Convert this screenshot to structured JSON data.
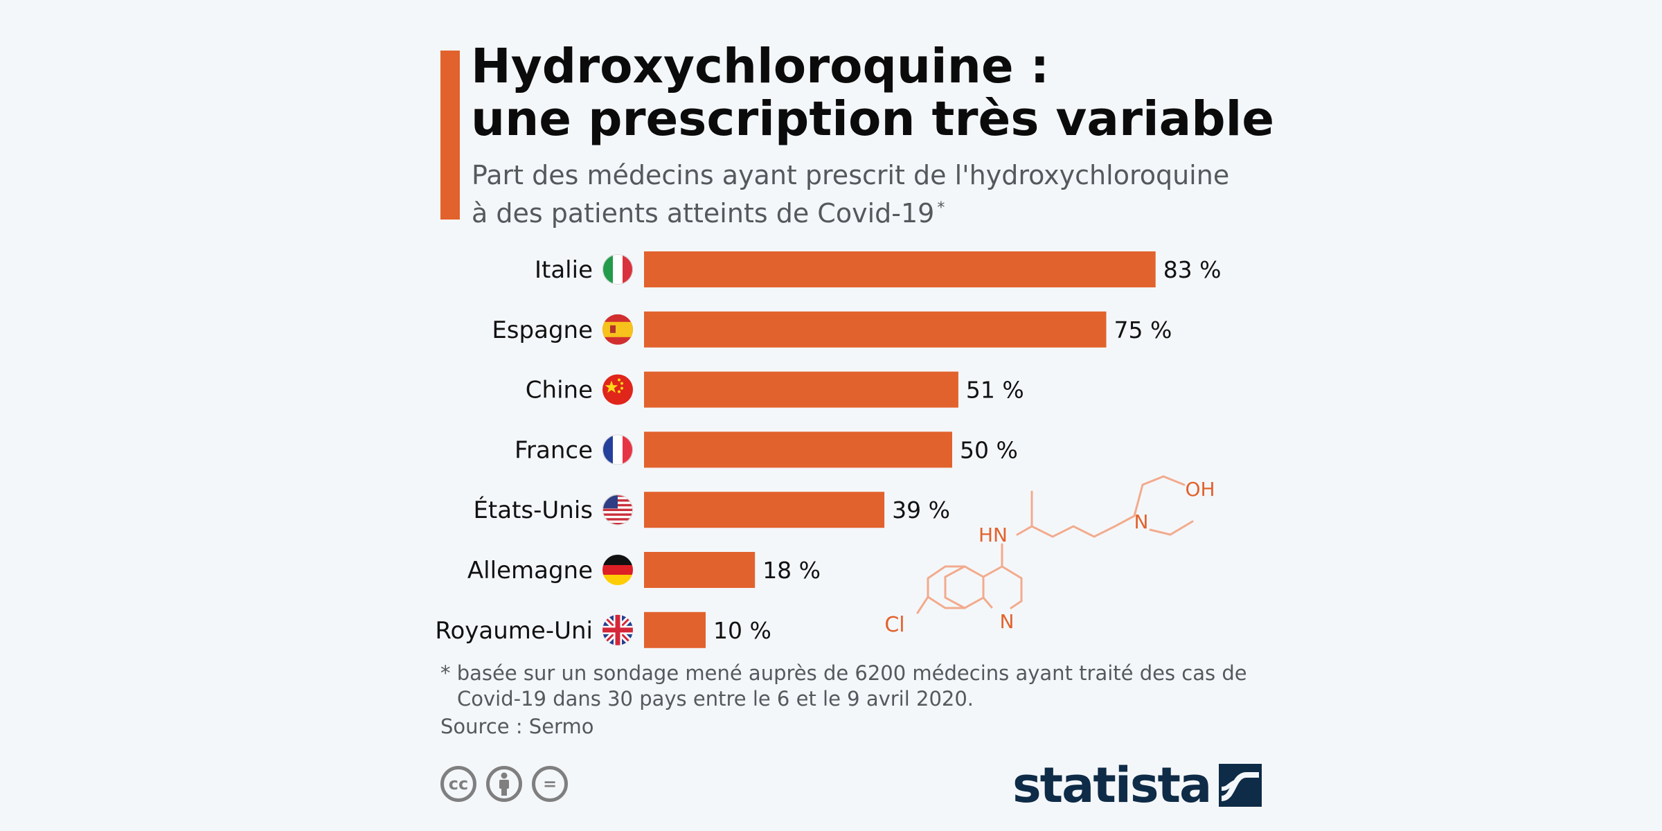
{
  "header": {
    "title_line1": "Hydroxychloroquine :",
    "title_line2": "une prescription très variable",
    "subtitle_line1": "Part des médecins ayant prescrit de l'hydroxychloroquine",
    "subtitle_line2": "à des patients atteints de Covid-19",
    "subtitle_mark": "*"
  },
  "chart_data": {
    "type": "bar",
    "orientation": "horizontal",
    "categories": [
      "Italie",
      "Espagne",
      "Chine",
      "France",
      "États-Unis",
      "Allemagne",
      "Royaume-Uni"
    ],
    "values": [
      83,
      75,
      51,
      50,
      39,
      18,
      10
    ],
    "value_labels": [
      "83 %",
      "75 %",
      "51 %",
      "50 %",
      "39 %",
      "18 %",
      "10 %"
    ],
    "flags": [
      "italy-flag-icon",
      "spain-flag-icon",
      "china-flag-icon",
      "france-flag-icon",
      "usa-flag-icon",
      "germany-flag-icon",
      "uk-flag-icon"
    ],
    "xlim": [
      0,
      100
    ],
    "grid": false,
    "bar_color": "#e2622d",
    "molecule_labels": {
      "hn": "HN",
      "n_chain": "N",
      "oh": "OH",
      "cl": "Cl",
      "n_ring": "N"
    }
  },
  "footer": {
    "footnote_line1": "* basée sur un sondage mené auprès de 6200 médecins ayant traité des cas de",
    "footnote_line2": "Covid-19 dans 30 pays entre le 6 et le 9 avril 2020.",
    "source": "Source : Sermo",
    "license_icons": [
      "cc-icon",
      "by-icon",
      "nd-icon"
    ],
    "license_cc": "cc",
    "license_nd": "=",
    "logo_text": "statista"
  },
  "colors": {
    "accent": "#e2622d",
    "background": "#f4f7fa",
    "logo": "#0e2b47",
    "molecule": "#f2ab8d"
  }
}
